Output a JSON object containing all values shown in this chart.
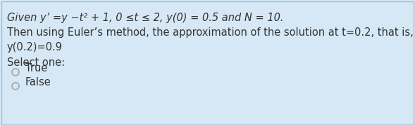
{
  "bg_color": "#d6e8f5",
  "border_color": "#a0bfd0",
  "line1": "Given y’ =y −t² + 1, 0 ≤t ≤ 2, y(0) = 0.5 and N = 10.",
  "line2": "Then using Euler’s method, the approximation of the solution at t=0.2, that is,",
  "line3": "y(0.2)=0.9",
  "line4": "Select one:",
  "option1": "True",
  "option2": "False",
  "text_color": "#333333",
  "font_size_main": 10.5,
  "figwidth": 5.89,
  "figheight": 1.8,
  "dpi": 100
}
